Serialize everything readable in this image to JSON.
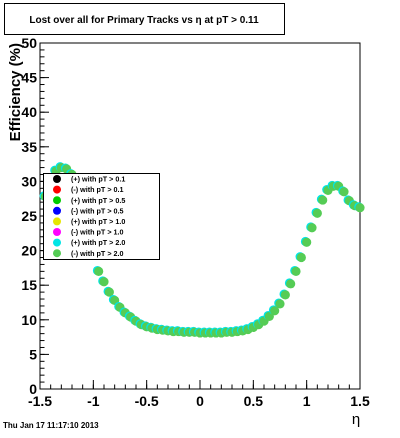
{
  "chart_data": {
    "type": "scatter",
    "title": "Lost over all for Primary Tracks vs   η at pT > 0.11",
    "xlabel": "η",
    "ylabel": "Efficiency (%)",
    "xlim": [
      -1.5,
      1.5
    ],
    "ylim": [
      0,
      50
    ],
    "x_ticks": [
      "-1.5",
      "-1",
      "-0.5",
      "0",
      "0.5",
      "1",
      "1.5"
    ],
    "y_ticks": [
      "0",
      "5",
      "10",
      "15",
      "20",
      "25",
      "30",
      "35",
      "40",
      "45",
      "50"
    ],
    "grid": false,
    "legend_position": "middle-left",
    "legend": [
      {
        "label": "(+) with pT > 0.1",
        "color": "#000000"
      },
      {
        "label": "(-) with pT > 0.1",
        "color": "#ff0000"
      },
      {
        "label": "(+) with pT > 0.5",
        "color": "#00cc00"
      },
      {
        "label": "(-) with pT > 0.5",
        "color": "#0000ff"
      },
      {
        "label": "(+) with pT > 1.0",
        "color": "#e6e600"
      },
      {
        "label": "(-) with pT > 1.0",
        "color": "#ff00ff"
      },
      {
        "label": "(+) with pT > 2.0",
        "color": "#00e5e5"
      },
      {
        "label": "(-) with pT > 2.0",
        "color": "#55cc55"
      }
    ],
    "series": [
      {
        "color": "#55cc55",
        "x": [
          -1.45,
          -1.4,
          -1.35,
          -1.3,
          -1.25,
          -1.2,
          -1.15,
          -1.1,
          -1.05,
          -1.0,
          -0.95,
          -0.9,
          -0.85,
          -0.8,
          -0.75,
          -0.7,
          -0.65,
          -0.6,
          -0.55,
          -0.5,
          -0.45,
          -0.4,
          -0.35,
          -0.3,
          -0.25,
          -0.2,
          -0.15,
          -0.1,
          -0.05,
          0.0,
          0.05,
          0.1,
          0.15,
          0.2,
          0.25,
          0.3,
          0.35,
          0.4,
          0.45,
          0.5,
          0.55,
          0.6,
          0.65,
          0.7,
          0.75,
          0.8,
          0.85,
          0.9,
          0.95,
          1.0,
          1.05,
          1.1,
          1.15,
          1.2,
          1.25,
          1.3,
          1.35,
          1.4,
          1.45,
          1.5
        ],
        "y": [
          27.8,
          29.5,
          31.5,
          32.0,
          31.8,
          31.0,
          28.0,
          25.0,
          22.0,
          19.5,
          17.0,
          15.5,
          14.0,
          12.8,
          11.8,
          11.0,
          10.4,
          9.8,
          9.3,
          9.0,
          8.8,
          8.6,
          8.5,
          8.4,
          8.3,
          8.3,
          8.2,
          8.2,
          8.2,
          8.1,
          8.1,
          8.1,
          8.1,
          8.1,
          8.2,
          8.2,
          8.3,
          8.4,
          8.6,
          8.9,
          9.3,
          9.8,
          10.5,
          11.3,
          12.3,
          13.6,
          15.2,
          17.0,
          19.0,
          21.2,
          23.3,
          25.4,
          27.3,
          28.7,
          29.3,
          29.3,
          28.5,
          27.2,
          26.5,
          26.2
        ]
      }
    ]
  },
  "footer": {
    "timestamp": "Thu Jan 17 11:17:10 2013"
  }
}
